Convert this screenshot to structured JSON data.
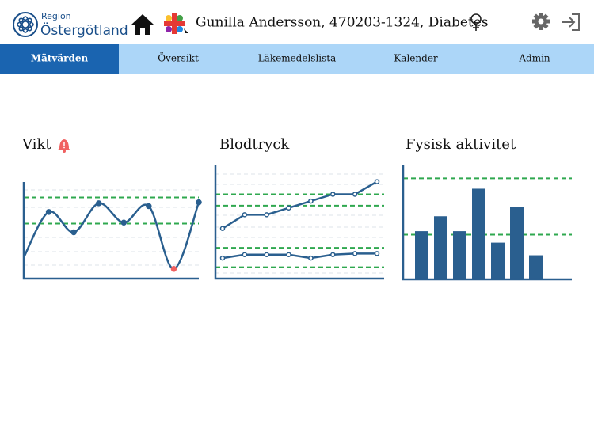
{
  "header": {
    "logo_top": "Region",
    "logo_main": "Östergötland",
    "patient": "Gunilla Andersson, 470203-1324, Diabetes"
  },
  "nav": {
    "tabs": [
      "Mätvärden",
      "Översikt",
      "Läkemedelslista",
      "Kalender",
      "Admin"
    ],
    "active": 0
  },
  "panels": [
    {
      "title": "Vikt",
      "chart": {
        "type": "line",
        "smooth": true,
        "ylim": [
          0,
          100
        ],
        "color": "#2a5f8f",
        "alert_color": "#f06060",
        "alert_points": [
          6
        ],
        "reference_color": "#2fa84f",
        "reference_lines": [
          84,
          57
        ],
        "series": [
          {
            "values": [
              22,
              69,
              48,
              78,
              58,
              75,
              10,
              79
            ]
          }
        ]
      }
    },
    {
      "title": "Blodtryck",
      "chart": {
        "type": "line",
        "smooth": false,
        "ylim": [
          0,
          100
        ],
        "color": "#2a5f8f",
        "reference_color": "#2fa84f",
        "reference_lines": [
          74,
          64,
          27,
          10
        ],
        "series": [
          {
            "values": [
              44,
              56,
              56,
              62,
              68,
              74,
              74,
              85
            ]
          },
          {
            "values": [
              18,
              21,
              21,
              21,
              18,
              21,
              22,
              22
            ]
          }
        ]
      }
    },
    {
      "title": "Fysisk aktivitet",
      "chart": {
        "type": "bar",
        "ylim": [
          0,
          100
        ],
        "color": "#2a5f8f",
        "reference_color": "#2fa84f",
        "reference_lines": [
          88,
          39
        ],
        "values": [
          42,
          55,
          42,
          79,
          32,
          63,
          21
        ]
      }
    }
  ]
}
